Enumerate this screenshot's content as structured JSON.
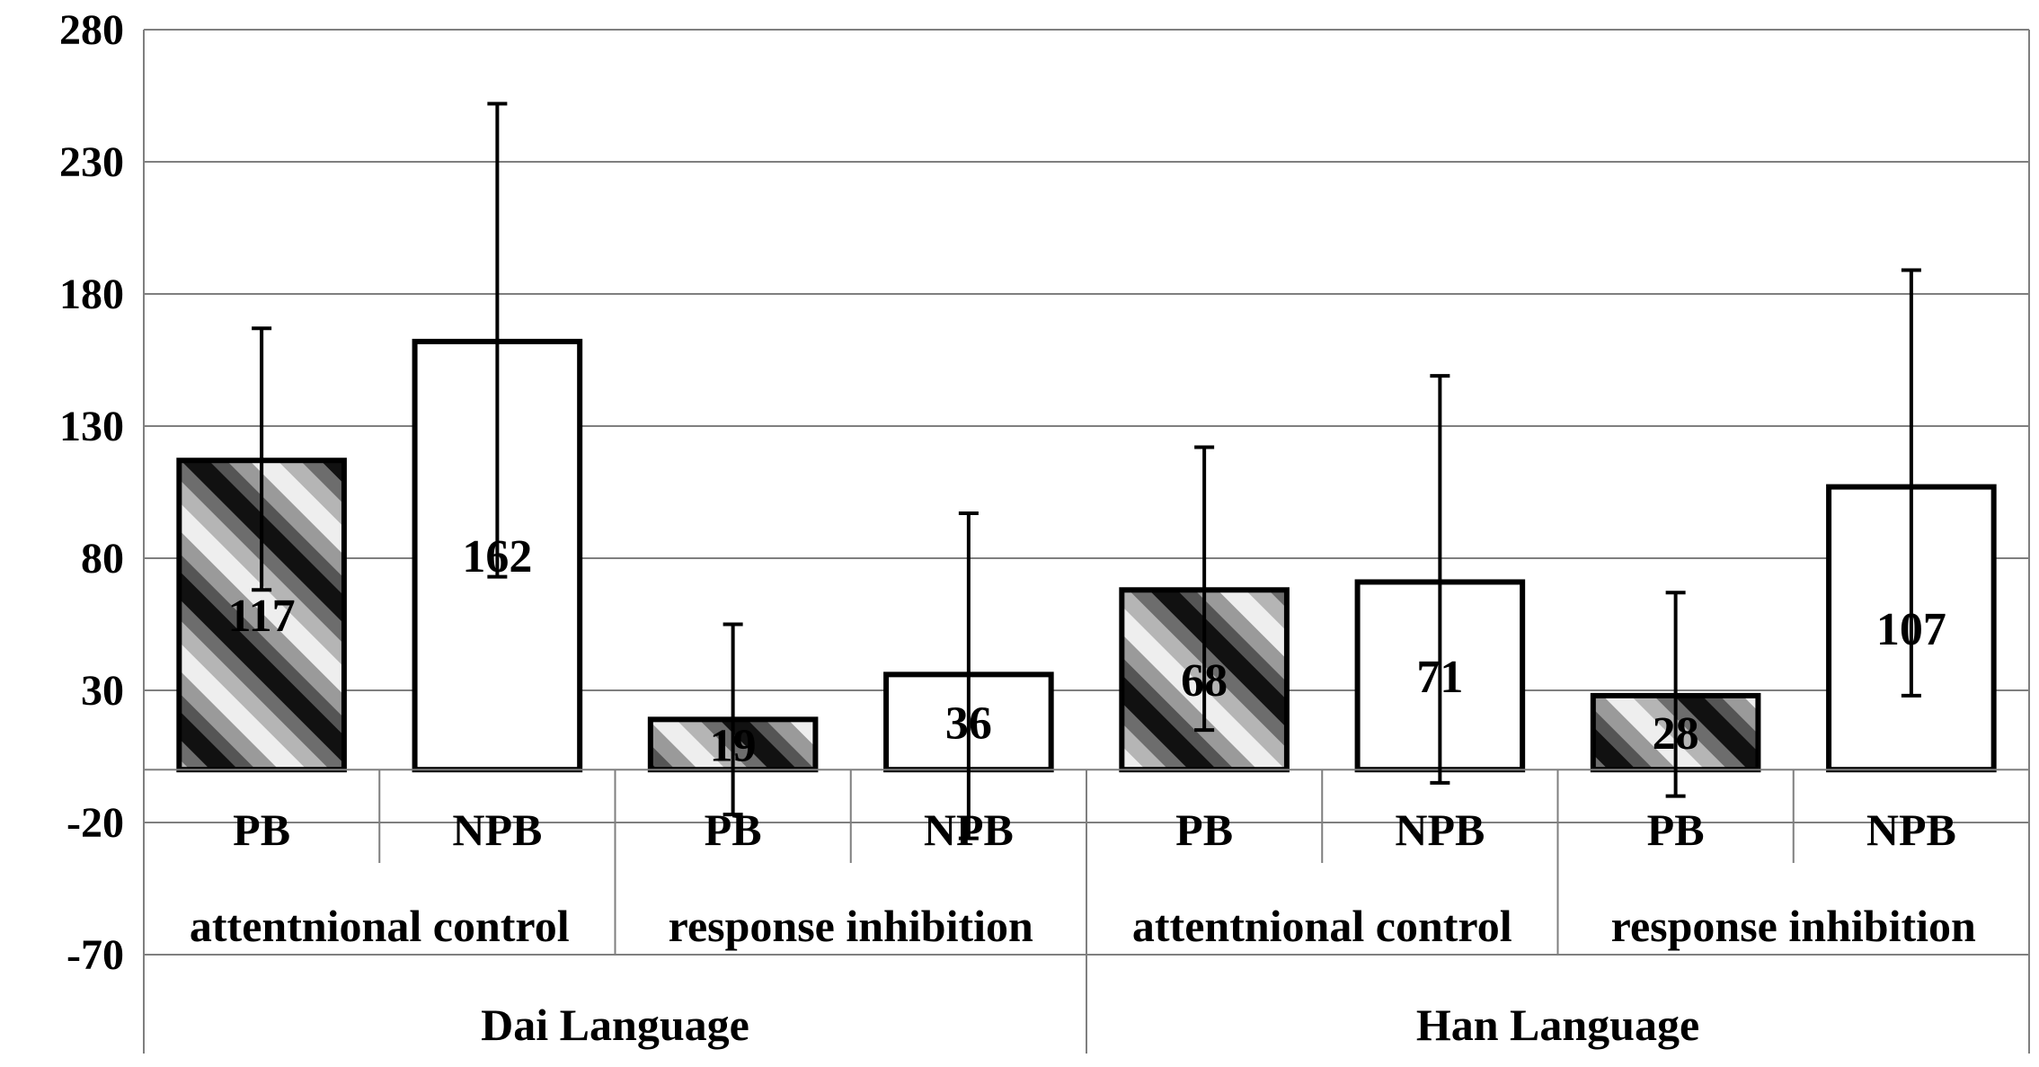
{
  "chart_data": {
    "type": "bar",
    "ylim": [
      -70,
      280
    ],
    "yticks": [
      280,
      230,
      180,
      130,
      80,
      30,
      -20,
      -70
    ],
    "grid": true,
    "categories": [
      {
        "group": "Dai Language",
        "task": "attentnional control",
        "condition": "PB"
      },
      {
        "group": "Dai Language",
        "task": "attentnional control",
        "condition": "NPB"
      },
      {
        "group": "Dai Language",
        "task": "response inhibition",
        "condition": "PB"
      },
      {
        "group": "Dai Language",
        "task": "response inhibition",
        "condition": "NPB"
      },
      {
        "group": "Han Language",
        "task": "attentnional control",
        "condition": "PB"
      },
      {
        "group": "Han Language",
        "task": "attentnional control",
        "condition": "NPB"
      },
      {
        "group": "Han Language",
        "task": "response inhibition",
        "condition": "PB"
      },
      {
        "group": "Han Language",
        "task": "response inhibition",
        "condition": "NPB"
      }
    ],
    "values": [
      117,
      162,
      19,
      36,
      68,
      71,
      28,
      107
    ],
    "value_labels": [
      "117",
      "162",
      "19",
      "36",
      "68",
      "71",
      "28",
      "107"
    ],
    "error_high": [
      167,
      252,
      55,
      97,
      122,
      149,
      67,
      189
    ],
    "error_low": [
      68,
      73,
      -17,
      -26,
      15,
      -5,
      -10,
      28
    ],
    "fills": [
      "hatched",
      "white",
      "hatched",
      "white",
      "hatched",
      "white",
      "hatched",
      "white"
    ],
    "tasks": [
      {
        "name": "attentnional control"
      },
      {
        "name": "response inhibition"
      },
      {
        "name": "attentnional control"
      },
      {
        "name": "response inhibition"
      }
    ],
    "groups": [
      {
        "name": "Dai Language"
      },
      {
        "name": "Han Language"
      }
    ]
  }
}
